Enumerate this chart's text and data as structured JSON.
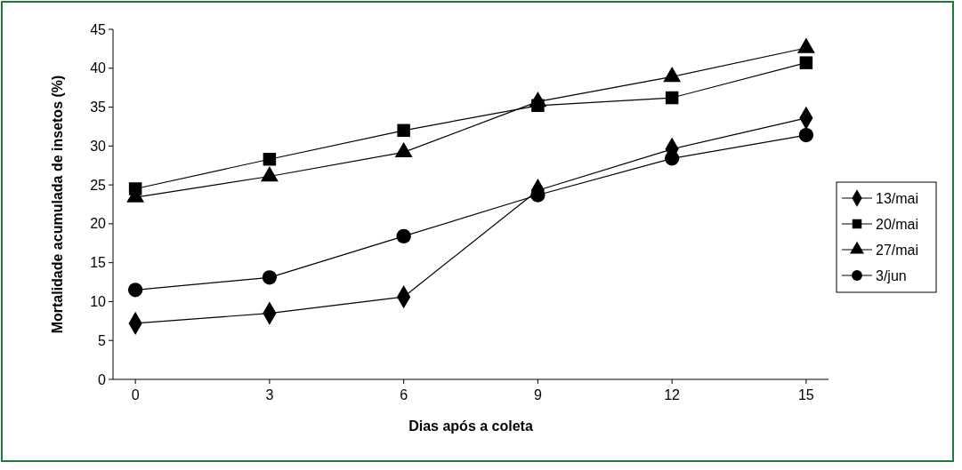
{
  "chart_data": {
    "type": "line",
    "xlabel": "Dias após a coleta",
    "ylabel": "Mortalidade acumulada de insetos (%)",
    "x": [
      0,
      3,
      6,
      9,
      12,
      15
    ],
    "xlim": [
      -0.5,
      15.5
    ],
    "xticks": [
      0,
      3,
      6,
      9,
      12,
      15
    ],
    "ylim": [
      0,
      45
    ],
    "yticks": [
      0,
      5,
      10,
      15,
      20,
      25,
      30,
      35,
      40,
      45
    ],
    "legend": "right",
    "grid": false,
    "series": [
      {
        "name": "13/mai",
        "color": "#000000",
        "marker": "diamond",
        "values": [
          7.2,
          8.5,
          10.6,
          24.3,
          29.6,
          33.6
        ]
      },
      {
        "name": "20/mai",
        "color": "#000000",
        "marker": "square",
        "values": [
          24.5,
          28.3,
          32,
          35.2,
          36.2,
          40.7
        ]
      },
      {
        "name": "27/mai",
        "color": "#000000",
        "marker": "triangle",
        "values": [
          23.4,
          26.1,
          29.2,
          35.7,
          38.9,
          42.6
        ]
      },
      {
        "name": "3/jun",
        "color": "#000000",
        "marker": "circle",
        "values": [
          11.5,
          13.1,
          18.4,
          23.7,
          28.4,
          31.4
        ]
      }
    ]
  }
}
